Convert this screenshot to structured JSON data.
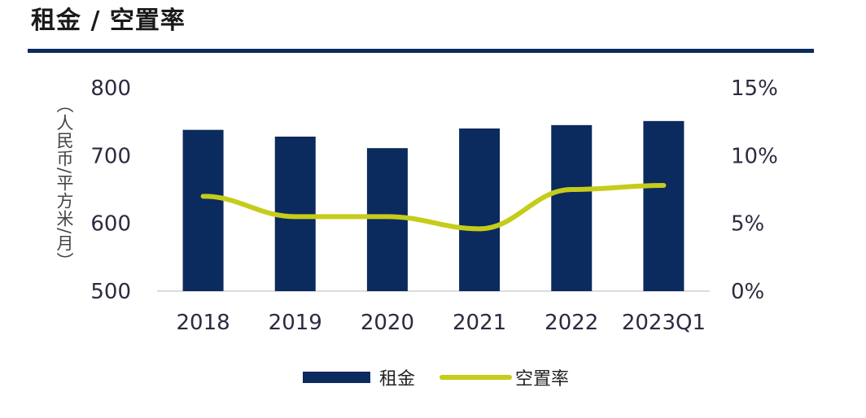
{
  "title": "租金 / 空置率",
  "chart_data": {
    "type": "bar",
    "title": "租金 / 空置率",
    "categories": [
      "2018",
      "2019",
      "2020",
      "2021",
      "2022",
      "2023Q1"
    ],
    "series": [
      {
        "name": "租金",
        "type": "bar",
        "axis": "left",
        "color": "#0b2a5e",
        "values": [
          738,
          728,
          711,
          740,
          745,
          751
        ]
      },
      {
        "name": "空置率",
        "type": "line",
        "axis": "right",
        "color": "#c5cc1a",
        "values": [
          7.0,
          5.5,
          5.5,
          4.6,
          7.5,
          7.8
        ]
      }
    ],
    "ylabel": "（人民币/平方米/月）",
    "ylim": [
      500,
      800
    ],
    "yticks": [
      "800",
      "700",
      "600",
      "500"
    ],
    "y2lim": [
      0,
      15
    ],
    "y2ticks": [
      "15%",
      "10%",
      "5%",
      "0%"
    ],
    "legend_position": "bottom-center",
    "grid": false
  }
}
